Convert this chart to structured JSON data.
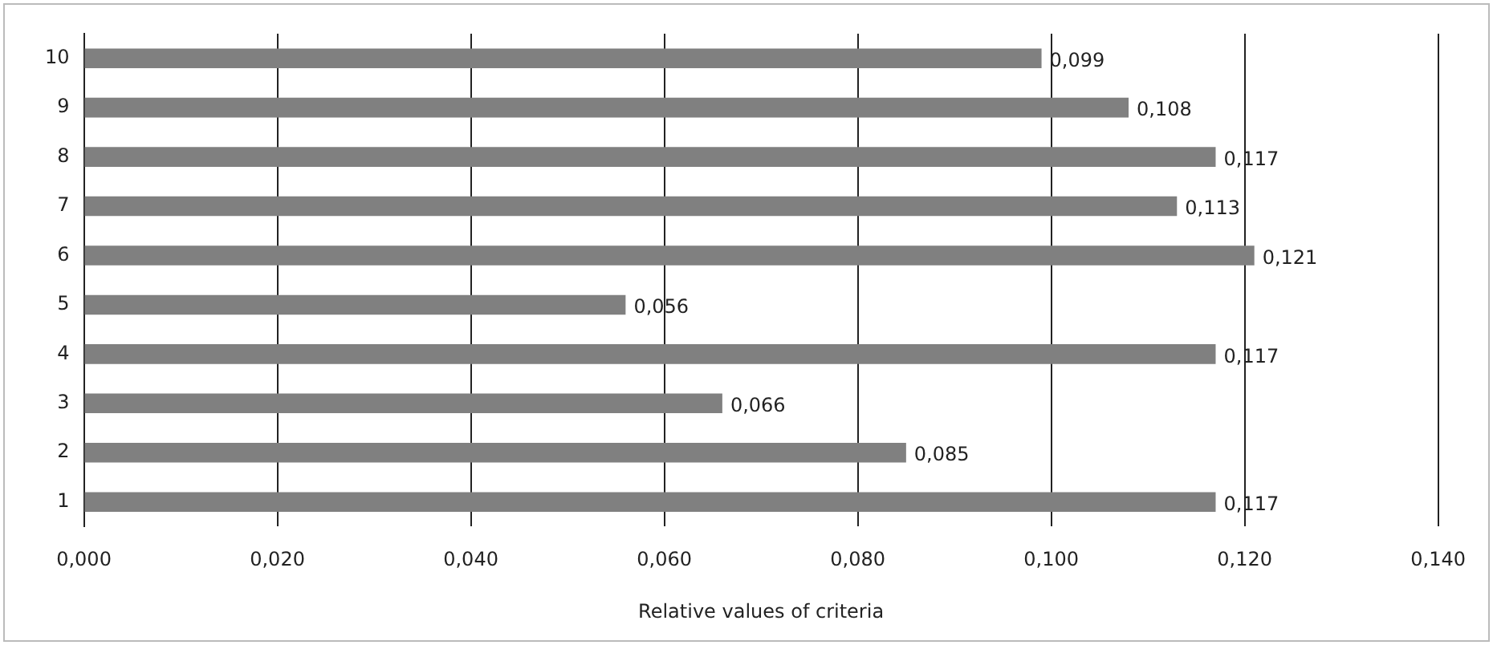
{
  "chart_data": {
    "type": "bar",
    "orientation": "horizontal",
    "xlabel": "Relative values of criteria",
    "categories": [
      "10",
      "9",
      "8",
      "7",
      "6",
      "5",
      "4",
      "3",
      "2",
      "1"
    ],
    "values": [
      0.099,
      0.108,
      0.117,
      0.113,
      0.121,
      0.056,
      0.117,
      0.066,
      0.085,
      0.117
    ],
    "value_labels": [
      "0,099",
      "0,108",
      "0,117",
      "0,113",
      "0,121",
      "0,056",
      "0,117",
      "0,066",
      "0,085",
      "0,117"
    ],
    "color": "#808080",
    "xlim": [
      0,
      0.14
    ],
    "xticks": [
      {
        "value": 0,
        "label": "0,000"
      },
      {
        "value": 0.02,
        "label": "0,020"
      },
      {
        "value": 0.04,
        "label": "0,040"
      },
      {
        "value": 0.06,
        "label": "0,060"
      },
      {
        "value": 0.08,
        "label": "0,080"
      },
      {
        "value": 0.1,
        "label": "0,100"
      },
      {
        "value": 0.12,
        "label": "0,120"
      },
      {
        "value": 0.14,
        "label": "0,140"
      }
    ],
    "grid": "x",
    "legend": false
  }
}
